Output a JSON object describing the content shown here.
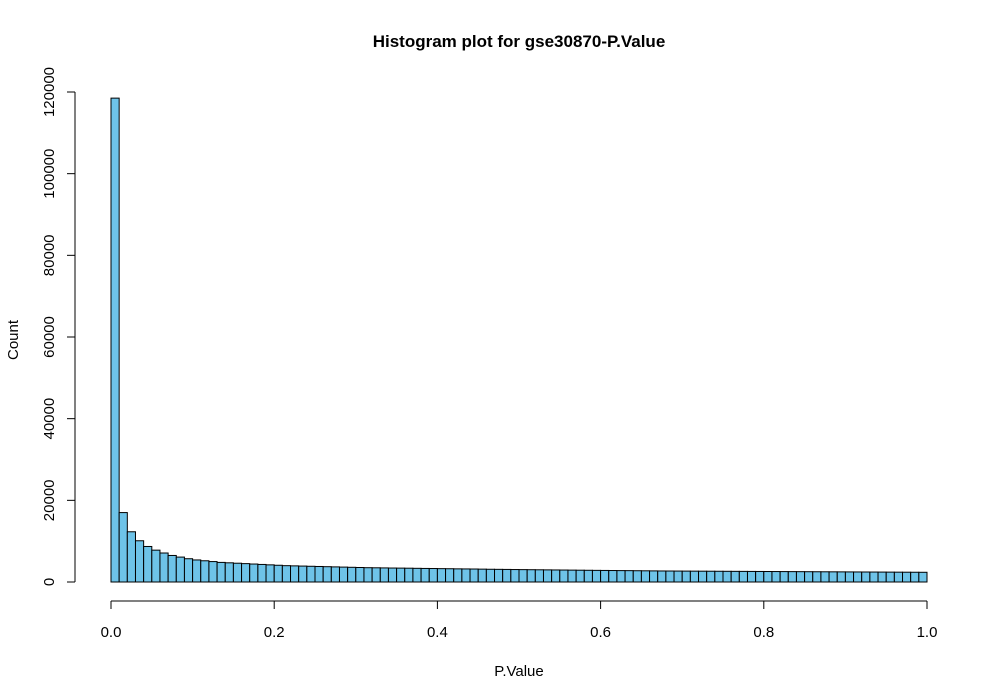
{
  "chart_data": {
    "type": "bar",
    "title": "Histogram plot for gse30870-P.Value",
    "xlabel": "P.Value",
    "ylabel": "Count",
    "xlim": [
      0.0,
      1.0
    ],
    "ylim": [
      0,
      120000
    ],
    "x_ticks": [
      0.0,
      0.2,
      0.4,
      0.6,
      0.8,
      1.0
    ],
    "x_tick_labels": [
      "0.0",
      "0.2",
      "0.4",
      "0.6",
      "0.8",
      "1.0"
    ],
    "y_ticks": [
      0,
      20000,
      40000,
      60000,
      80000,
      100000,
      120000
    ],
    "y_tick_labels": [
      "0",
      "20000",
      "40000",
      "60000",
      "80000",
      "100000",
      "120000"
    ],
    "bin_width": 0.01,
    "grid": false,
    "bar_color": "#6EC3E8",
    "border_color": "#000000",
    "values": [
      118500,
      17000,
      12300,
      10100,
      8700,
      7800,
      7100,
      6500,
      6100,
      5700,
      5400,
      5200,
      5000,
      4800,
      4700,
      4600,
      4500,
      4400,
      4300,
      4200,
      4100,
      4000,
      3950,
      3900,
      3850,
      3800,
      3750,
      3700,
      3650,
      3600,
      3550,
      3500,
      3480,
      3450,
      3420,
      3400,
      3380,
      3350,
      3320,
      3300,
      3270,
      3250,
      3220,
      3200,
      3180,
      3150,
      3120,
      3100,
      3080,
      3050,
      3030,
      3010,
      2990,
      2970,
      2950,
      2930,
      2910,
      2890,
      2870,
      2850,
      2830,
      2810,
      2790,
      2780,
      2760,
      2740,
      2720,
      2700,
      2690,
      2680,
      2670,
      2660,
      2650,
      2640,
      2630,
      2620,
      2610,
      2600,
      2590,
      2580,
      2570,
      2560,
      2550,
      2540,
      2530,
      2520,
      2510,
      2500,
      2490,
      2480,
      2470,
      2460,
      2450,
      2440,
      2430,
      2420,
      2410,
      2400,
      2390,
      2380
    ]
  }
}
